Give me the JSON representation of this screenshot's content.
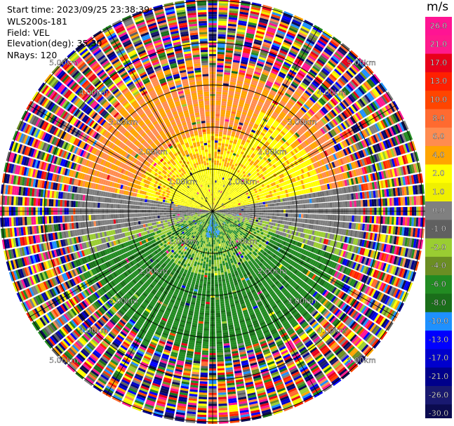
{
  "header": {
    "start_time": "Start time: 2023/09/25 23:38:39",
    "station": "WLS200s-181",
    "field": "Field: VEL",
    "elevation": "Elevation(deg): 35.30",
    "nrays": "NRays: 120"
  },
  "chart_data": {
    "type": "heatmap",
    "projection": "polar PPI",
    "field": "VEL",
    "nrays": 120,
    "range_rings_km": [
      1.0,
      2.0,
      3.0,
      4.0,
      5.0
    ],
    "range_ring_labels": [
      "1.00km",
      "2.00km",
      "3.00km",
      "4.00km",
      "5.00km"
    ],
    "colorbar": {
      "unit": "m/s",
      "ticks": [
        "26.0",
        "21.0",
        "17.0",
        "13.0",
        "10.0",
        "8.0",
        "6.0",
        "4.0",
        "2.0",
        "1.0",
        "0.0",
        "-1.0",
        "-2.0",
        "-4.0",
        "-6.0",
        "-8.0",
        "-10.0",
        "-13.0",
        "-17.0",
        "-21.0",
        "-26.0",
        "-30.0"
      ],
      "colors": [
        "#ff1493",
        "#ff1a8c",
        "#e8001a",
        "#ff2000",
        "#ff4500",
        "#ff6a30",
        "#ff8c50",
        "#ffa500",
        "#ffff00",
        "#f0f000",
        "#808080",
        "#606060",
        "#9acd32",
        "#6b8e23",
        "#228b22",
        "#1a6e1a",
        "#1e90ff",
        "#0000ff",
        "#0000cd",
        "#00008b",
        "#191970",
        "#0b0b50"
      ]
    },
    "sectors": [
      {
        "region": "near north (0-3.5 km)",
        "velocity": "orange/yellow, +2 to +8 m/s"
      },
      {
        "region": "near south (0-3.5 km)",
        "velocity": "green, -2 to -8 m/s"
      },
      {
        "region": "east-west band",
        "velocity": "gray, about 0 m/s"
      },
      {
        "region": "beyond 3.5 km",
        "velocity": "noise, all values"
      }
    ]
  }
}
